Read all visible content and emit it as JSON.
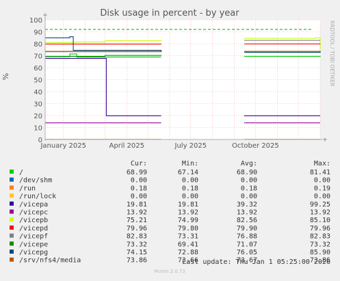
{
  "chart_data": {
    "type": "line",
    "title": "Disk usage in percent - by year",
    "ylabel": "%",
    "side_label": "RRDTOOL / TOBI OETIKER",
    "ylim": [
      0,
      100
    ],
    "yticks": [
      0,
      10,
      20,
      30,
      40,
      50,
      60,
      70,
      80,
      90,
      100
    ],
    "xlim": [
      "2024-12-06",
      "2026-01-01"
    ],
    "xticks": [
      {
        "label": "January 2025",
        "date": "2025-01-01"
      },
      {
        "label": "April 2025",
        "date": "2025-04-01"
      },
      {
        "label": "July 2025",
        "date": "2025-07-01"
      },
      {
        "label": "October 2025",
        "date": "2025-10-01"
      }
    ],
    "grid": true,
    "warning_level": 92,
    "legend_headers": [
      "Cur:",
      "Min:",
      "Avg:",
      "Max:"
    ],
    "series": [
      {
        "name": "/",
        "color": "#00cc00",
        "cur": "68.99",
        "min": "67.14",
        "avg": "68.90",
        "max": "81.41",
        "points": [
          [
            "2024-12-06",
            69.2
          ],
          [
            "2025-01-10",
            71.5
          ],
          [
            "2025-01-20",
            68.9
          ],
          [
            "2025-05-20",
            68.9
          ],
          [
            "2025-09-15",
            69.5
          ],
          [
            "2026-01-01",
            69.0
          ]
        ]
      },
      {
        "name": "/dev/shm",
        "color": "#0066b3",
        "cur": "0.00",
        "min": "0.00",
        "avg": "0.00",
        "max": "0.00",
        "points": [
          [
            "2024-12-06",
            0
          ],
          [
            "2025-05-20",
            0
          ],
          [
            "2025-09-15",
            0
          ],
          [
            "2026-01-01",
            0
          ]
        ]
      },
      {
        "name": "/run",
        "color": "#ff8000",
        "cur": "0.18",
        "min": "0.18",
        "avg": "0.18",
        "max": "0.19",
        "points": [
          [
            "2024-12-06",
            0.2
          ],
          [
            "2025-05-20",
            0.2
          ],
          [
            "2025-09-15",
            0.2
          ],
          [
            "2026-01-01",
            0.2
          ]
        ]
      },
      {
        "name": "/run/lock",
        "color": "#ffcc00",
        "cur": "0.00",
        "min": "0.00",
        "avg": "0.00",
        "max": "0.00",
        "points": [
          [
            "2024-12-06",
            0
          ],
          [
            "2025-05-20",
            0
          ],
          [
            "2025-09-15",
            0
          ],
          [
            "2026-01-01",
            0
          ]
        ]
      },
      {
        "name": "/vicepa",
        "color": "#330099",
        "cur": "19.81",
        "min": "19.81",
        "avg": "39.32",
        "max": "99.25",
        "points": [
          [
            "2024-12-06",
            67.8
          ],
          [
            "2025-02-28",
            67.8
          ],
          [
            "2025-03-03",
            19.8
          ],
          [
            "2025-05-20",
            19.8
          ],
          [
            "2025-09-15",
            19.8
          ],
          [
            "2026-01-01",
            19.8
          ]
        ]
      },
      {
        "name": "/vicepc",
        "color": "#990099",
        "cur": "13.92",
        "min": "13.92",
        "avg": "13.92",
        "max": "13.92",
        "points": [
          [
            "2024-12-06",
            13.9
          ],
          [
            "2025-05-20",
            13.9
          ],
          [
            "2025-09-15",
            13.9
          ],
          [
            "2026-01-01",
            13.9
          ]
        ]
      },
      {
        "name": "/vicepb",
        "color": "#ccff00",
        "cur": "75.21",
        "min": "74.99",
        "avg": "82.56",
        "max": "85.10",
        "points": [
          [
            "2024-12-06",
            81.0
          ],
          [
            "2025-01-15",
            81.5
          ],
          [
            "2025-03-01",
            82.5
          ],
          [
            "2025-05-20",
            83.3
          ],
          [
            "2025-09-15",
            84.5
          ],
          [
            "2025-12-25",
            85.0
          ],
          [
            "2026-01-01",
            75.2
          ]
        ]
      },
      {
        "name": "/vicepd",
        "color": "#ff0000",
        "cur": "79.96",
        "min": "79.80",
        "avg": "79.90",
        "max": "79.96",
        "points": [
          [
            "2024-12-06",
            79.8
          ],
          [
            "2025-05-20",
            79.9
          ],
          [
            "2025-09-15",
            79.9
          ],
          [
            "2026-01-01",
            80.0
          ]
        ]
      },
      {
        "name": "/vicepf",
        "color": "#808080",
        "cur": "82.83",
        "min": "73.31",
        "avg": "76.88",
        "max": "82.83",
        "points": [
          [
            "2024-12-06",
            73.3
          ],
          [
            "2025-05-20",
            73.4
          ],
          [
            "2025-09-15",
            82.8
          ],
          [
            "2026-01-01",
            82.8
          ]
        ]
      },
      {
        "name": "/vicepe",
        "color": "#008f00",
        "cur": "73.32",
        "min": "69.41",
        "avg": "71.07",
        "max": "73.32",
        "points": [
          [
            "2024-12-06",
            69.5
          ],
          [
            "2025-03-01",
            70.2
          ],
          [
            "2025-05-20",
            70.5
          ],
          [
            "2025-09-15",
            72.8
          ],
          [
            "2026-01-01",
            73.3
          ]
        ]
      },
      {
        "name": "/vicepg",
        "color": "#00487d",
        "cur": "74.15",
        "min": "72.88",
        "avg": "76.05",
        "max": "85.90",
        "points": [
          [
            "2024-12-06",
            85.0
          ],
          [
            "2025-01-10",
            85.9
          ],
          [
            "2025-01-15",
            74.5
          ],
          [
            "2025-05-20",
            73.2
          ],
          [
            "2025-09-15",
            73.0
          ],
          [
            "2026-01-01",
            74.2
          ]
        ]
      },
      {
        "name": "/srv/nfs4/media",
        "color": "#b35a00",
        "cur": "73.86",
        "min": "73.66",
        "avg": "73.67",
        "max": "73.86",
        "points": [
          [
            "2024-12-06",
            73.7
          ],
          [
            "2025-05-20",
            73.7
          ],
          [
            "2025-09-15",
            73.7
          ],
          [
            "2026-01-01",
            73.9
          ]
        ]
      }
    ],
    "gap": [
      "2025-05-20",
      "2025-09-15"
    ],
    "last_update": "Last update: Thu Jan  1 05:25:00 2026",
    "footer": "Munin 2.0.73"
  }
}
